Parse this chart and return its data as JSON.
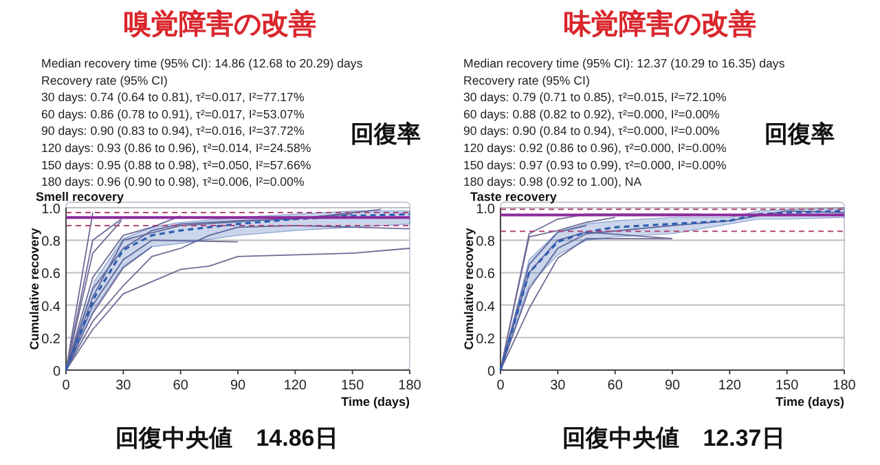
{
  "chart_data": [
    {
      "type": "line",
      "title": "嗅覚障害の改善",
      "subtitle": "Smell recovery",
      "xlabel": "Time (days)",
      "ylabel": "Cumulative recovery",
      "annotations": [
        "Median recovery time (95% CI): 14.86 (12.68 to 20.29) days",
        "Recovery rate (95% CI)",
        "30 days: 0.74 (0.64 to 0.81), τ²=0.017, I²=77.17%",
        "60 days: 0.86 (0.78 to 0.91), τ²=0.017, I²=53.07%",
        "90 days: 0.90 (0.83 to 0.94), τ²=0.016, I²=37.72%",
        "120 days: 0.93 (0.86 to 0.96), τ²=0.014, I²=24.58%",
        "150 days: 0.95 (0.88 to 0.98), τ²=0.050, I²=57.66%",
        "180 days: 0.96 (0.90 to 0.98), τ²=0.006, I²=0.00%",
        "回復率",
        "回復中央値　14.86日"
      ],
      "xlim": [
        0,
        180
      ],
      "xticks": [
        0,
        30,
        60,
        90,
        120,
        150,
        180
      ],
      "ylim": [
        0,
        1
      ],
      "yticks": [
        0,
        0.2,
        0.4,
        0.6,
        0.8,
        {
          "value": 1,
          "label": "1.0"
        }
      ],
      "grid": "y",
      "line_style": "solid",
      "ref_lines": [
        {
          "axis": "y",
          "value": 0.94,
          "color": "#8e2a9e",
          "line_style": "solid"
        },
        {
          "axis": "y",
          "value": 0.97,
          "color": "#b0457a",
          "line_style": "dashed"
        },
        {
          "axis": "y",
          "value": 0.89,
          "color": "#b0457a",
          "line_style": "dashed"
        }
      ],
      "series": [
        {
          "color": "#6e6a96",
          "x": [
            0,
            14
          ],
          "values": [
            0,
            0.97
          ]
        },
        {
          "color": "#6e6a96",
          "x": [
            0,
            14,
            29
          ],
          "values": [
            0,
            0.8,
            0.93
          ]
        },
        {
          "color": "#6e6a96",
          "x": [
            0,
            14,
            29
          ],
          "values": [
            0,
            0.72,
            0.92
          ]
        },
        {
          "color": "#6e6a96",
          "x": [
            0,
            14,
            30,
            45,
            60
          ],
          "values": [
            0,
            0.57,
            0.83,
            0.88,
            0.95
          ]
        },
        {
          "color": "#6e6a96",
          "x": [
            0,
            14,
            30,
            45,
            60,
            90,
            120,
            165
          ],
          "values": [
            0,
            0.5,
            0.75,
            0.86,
            0.9,
            0.92,
            0.93,
            0.99
          ]
        },
        {
          "color": "#6e6a96",
          "x": [
            0,
            14,
            30,
            45,
            90
          ],
          "values": [
            0,
            0.4,
            0.68,
            0.8,
            0.79
          ]
        },
        {
          "color": "#6e6a96",
          "x": [
            0,
            14,
            30,
            45
          ],
          "values": [
            0,
            0.35,
            0.63,
            0.76
          ]
        },
        {
          "color": "#6e6a96",
          "x": [
            0,
            14,
            30,
            45,
            60,
            75,
            90,
            120,
            180
          ],
          "values": [
            0,
            0.3,
            0.52,
            0.7,
            0.75,
            0.83,
            0.88,
            0.89,
            0.87
          ]
        },
        {
          "color": "#6e6a96",
          "x": [
            0,
            14,
            30,
            60,
            75,
            90,
            150,
            180
          ],
          "values": [
            0,
            0.25,
            0.47,
            0.62,
            0.64,
            0.7,
            0.72,
            0.75
          ]
        },
        {
          "color": "#6e6a96",
          "x": [
            0,
            14,
            30,
            60,
            150
          ],
          "values": [
            0,
            0.45,
            0.8,
            0.89,
            0.96
          ]
        },
        {
          "color": "#2f5cb0",
          "line_style": "dashed",
          "x": [
            0,
            15,
            30,
            45,
            60,
            90,
            120,
            150,
            180
          ],
          "values": [
            0,
            0.45,
            0.74,
            0.83,
            0.86,
            0.9,
            0.93,
            0.95,
            0.96
          ],
          "lower": [
            0,
            0.38,
            0.64,
            0.76,
            0.78,
            0.83,
            0.86,
            0.88,
            0.9
          ],
          "upper": [
            0,
            0.55,
            0.81,
            0.88,
            0.91,
            0.94,
            0.96,
            0.98,
            0.98
          ]
        }
      ]
    },
    {
      "type": "line",
      "title": "味覚障害の改善",
      "subtitle": "Taste recovery",
      "xlabel": "Time (days)",
      "ylabel": "Cumulative recovery",
      "annotations": [
        "Median recovery time (95% CI): 12.37 (10.29 to 16.35) days",
        "Recovery rate (95% CI)",
        "30 days: 0.79 (0.71 to 0.85), τ²=0.015, I²=72.10%",
        "60 days: 0.88 (0.82 to 0.92), τ²=0.000, I²=0.00%",
        "90 days: 0.90 (0.84 to 0.94), τ²=0.000, I²=0.00%",
        "120 days: 0.92 (0.86 to 0.96), τ²=0.000, I²=0.00%",
        "150 days: 0.97 (0.93 to 0.99), τ²=0.000, I²=0.00%",
        "180 days: 0.98 (0.92 to 1.00), NA",
        "回復率",
        "回復中央値　12.37日"
      ],
      "xlim": [
        0,
        180
      ],
      "xticks": [
        0,
        30,
        60,
        90,
        120,
        150,
        180
      ],
      "ylim": [
        0,
        1
      ],
      "yticks": [
        0,
        0.2,
        0.4,
        0.6,
        0.8,
        {
          "value": 1,
          "label": "1.0"
        }
      ],
      "grid": "y",
      "line_style": "solid",
      "ref_lines": [
        {
          "axis": "y",
          "value": 0.955,
          "color": "#8e2a9e",
          "line_style": "solid"
        },
        {
          "axis": "y",
          "value": 0.99,
          "color": "#b0457a",
          "line_style": "dashed"
        },
        {
          "axis": "y",
          "value": 0.855,
          "color": "#b0457a",
          "line_style": "dashed"
        }
      ],
      "series": [
        {
          "color": "#6e6a96",
          "x": [
            0,
            15,
            30,
            45,
            105
          ],
          "values": [
            0,
            0.84,
            0.93,
            0.96,
            0.96
          ]
        },
        {
          "color": "#6e6a96",
          "x": [
            0,
            15,
            30,
            45,
            60
          ],
          "values": [
            0,
            0.82,
            0.86,
            0.91,
            0.94
          ]
        },
        {
          "color": "#6e6a96",
          "x": [
            0,
            15,
            30,
            45
          ],
          "values": [
            0,
            0.65,
            0.85,
            0.89
          ]
        },
        {
          "color": "#6e6a96",
          "x": [
            0,
            15,
            30,
            45,
            90
          ],
          "values": [
            0,
            0.6,
            0.8,
            0.85,
            0.81
          ]
        },
        {
          "color": "#6e6a96",
          "x": [
            0,
            15,
            30,
            45,
            90,
            120,
            150,
            180
          ],
          "values": [
            0,
            0.5,
            0.75,
            0.84,
            0.89,
            0.92,
            0.98,
            0.97
          ]
        },
        {
          "color": "#6e6a96",
          "x": [
            0,
            15,
            30,
            45,
            90
          ],
          "values": [
            0,
            0.38,
            0.69,
            0.81,
            0.81
          ]
        },
        {
          "color": "#2f5cb0",
          "line_style": "dashed",
          "x": [
            0,
            15,
            30,
            45,
            60,
            90,
            120,
            135,
            150,
            180
          ],
          "values": [
            0,
            0.6,
            0.79,
            0.85,
            0.88,
            0.9,
            0.92,
            0.96,
            0.97,
            0.98
          ],
          "lower": [
            0,
            0.52,
            0.71,
            0.8,
            0.82,
            0.84,
            0.9,
            0.93,
            0.93,
            0.94
          ],
          "upper": [
            0,
            0.68,
            0.85,
            0.9,
            0.92,
            0.94,
            0.94,
            0.98,
            0.99,
            1
          ]
        }
      ]
    }
  ]
}
